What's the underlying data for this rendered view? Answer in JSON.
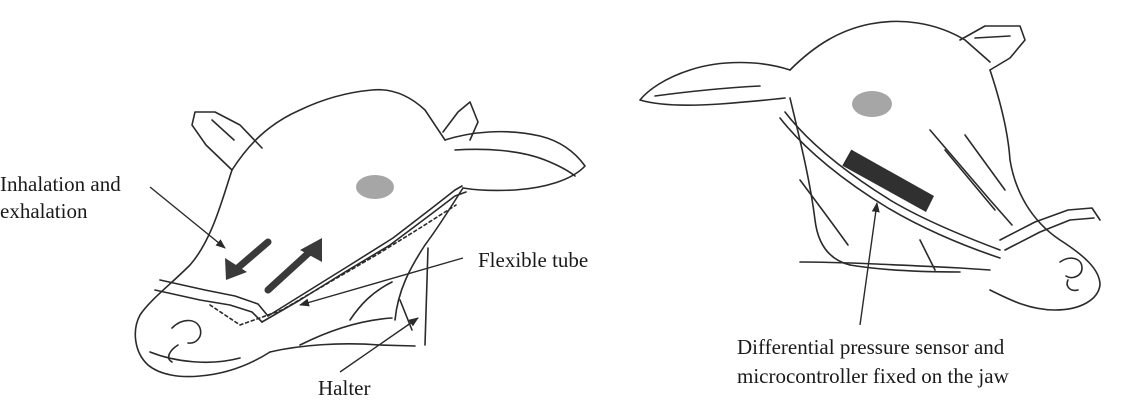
{
  "labels": {
    "inhalation_line1": "Inhalation and",
    "inhalation_line2": "exhalation",
    "flexible_tube": "Flexible tube",
    "halter": "Halter",
    "sensor_line1": "Differential pressure sensor and",
    "sensor_line2": "microcontroller fixed on the jaw"
  },
  "colors": {
    "ink": "#2a2a2a",
    "eye": "#a6a6a6",
    "sensor": "#303030",
    "background": "#ffffff"
  }
}
